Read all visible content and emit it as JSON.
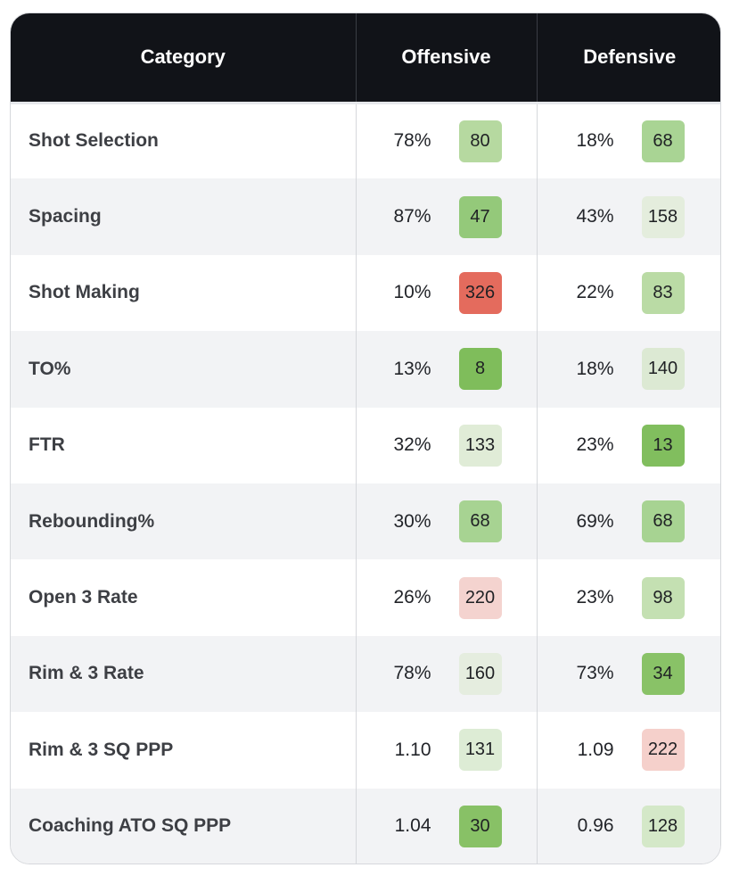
{
  "table": {
    "headers": {
      "category": "Category",
      "offensive": "Offensive",
      "defensive": "Defensive"
    },
    "rows": [
      {
        "category": "Shot Selection",
        "off_value": "78%",
        "off_rank": "80",
        "off_color": "#b6d9a0",
        "def_value": "18%",
        "def_rank": "68",
        "def_color": "#a9d494"
      },
      {
        "category": "Spacing",
        "off_value": "87%",
        "off_rank": "47",
        "off_color": "#94c97a",
        "def_value": "43%",
        "def_rank": "158",
        "def_color": "#e4eddd"
      },
      {
        "category": "Shot Making",
        "off_value": "10%",
        "off_rank": "326",
        "off_color": "#e46b5d",
        "def_value": "22%",
        "def_rank": "83",
        "def_color": "#badba5"
      },
      {
        "category": "TO%",
        "off_value": "13%",
        "off_rank": "8",
        "off_color": "#7fbd5b",
        "def_value": "18%",
        "def_rank": "140",
        "def_color": "#dce9d3"
      },
      {
        "category": "FTR",
        "off_value": "32%",
        "off_rank": "133",
        "off_color": "#e0ecd7",
        "def_value": "23%",
        "def_rank": "13",
        "def_color": "#81be5e"
      },
      {
        "category": "Rebounding%",
        "off_value": "30%",
        "off_rank": "68",
        "off_color": "#a7d392",
        "def_value": "69%",
        "def_rank": "68",
        "def_color": "#a7d392"
      },
      {
        "category": "Open 3 Rate",
        "off_value": "26%",
        "off_rank": "220",
        "off_color": "#f4d3cf",
        "def_value": "23%",
        "def_rank": "98",
        "def_color": "#c4e0b2"
      },
      {
        "category": "Rim & 3 Rate",
        "off_value": "78%",
        "off_rank": "160",
        "off_color": "#e5eddf",
        "def_value": "73%",
        "def_rank": "34",
        "def_color": "#89c267"
      },
      {
        "category": "Rim & 3 SQ PPP",
        "off_value": "1.10",
        "off_rank": "131",
        "off_color": "#ddecd5",
        "def_value": "1.09",
        "def_rank": "222",
        "def_color": "#f5d0cb"
      },
      {
        "category": "Coaching ATO SQ PPP",
        "off_value": "1.04",
        "off_rank": "30",
        "off_color": "#88c166",
        "def_value": "0.96",
        "def_rank": "128",
        "def_color": "#d4e8c8"
      }
    ]
  }
}
